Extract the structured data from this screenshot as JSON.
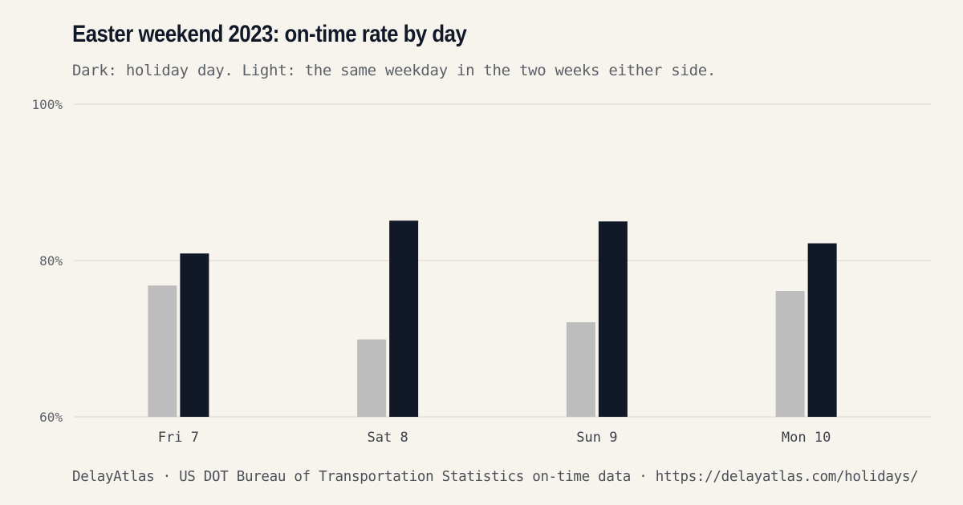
{
  "header": {
    "title": "Easter weekend 2023: on-time rate by day",
    "subtitle": "Dark: holiday day. Light: the same weekday in the two weeks either side."
  },
  "footer": {
    "source": "DelayAtlas · US DOT Bureau of Transportation Statistics on-time data · https://delayatlas.com/holidays/"
  },
  "colors": {
    "holiday": "#111827",
    "baseline": "#bdbdbd",
    "grid": "#e5e1d9"
  },
  "chart_data": {
    "type": "bar",
    "categories": [
      "Fri 7",
      "Sat 8",
      "Sun 9",
      "Mon 10"
    ],
    "series": [
      {
        "values": [
          76.8,
          69.9,
          72.1,
          76.1
        ]
      },
      {
        "values": [
          80.9,
          85.1,
          85.0,
          82.2
        ]
      }
    ],
    "ylim": [
      60,
      100
    ],
    "yticks": [
      60,
      80,
      100
    ],
    "ytick_labels": [
      "60%",
      "80%",
      "100%"
    ],
    "xlabel": "",
    "ylabel": "",
    "grid": true,
    "legend": "none"
  }
}
